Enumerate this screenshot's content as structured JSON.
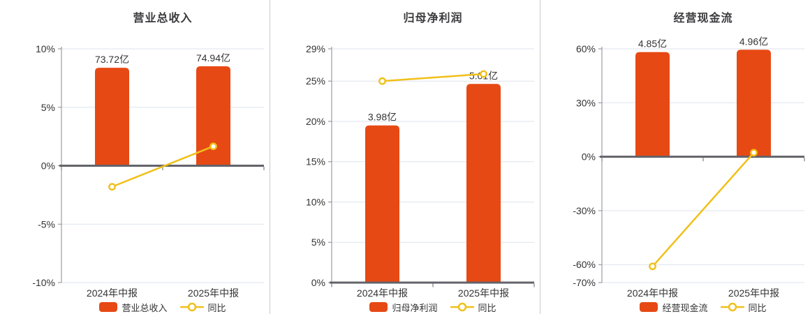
{
  "colors": {
    "bar": "#e74914",
    "line": "#f0c019",
    "marker_fill": "#ffffff",
    "grid": "#dde3ee",
    "axis_line": "#8a8a92",
    "zero_line": "#63636a",
    "text": "#333333",
    "title_text": "#3b3b3e",
    "separator": "#c9c9c9",
    "background": "#ffffff"
  },
  "chart_data": [
    {
      "type": "bar+line",
      "title": "营业总收入",
      "categories": [
        "2024年中报",
        "2025年中报"
      ],
      "bar_series": {
        "name": "营业总收入",
        "unit": "亿",
        "values": [
          73.72,
          74.94
        ],
        "value_labels": [
          "73.72亿",
          "74.94亿"
        ],
        "bar_top_axis_pct": [
          8.38,
          8.51
        ]
      },
      "line_series": {
        "name": "同比",
        "values_pct": [
          -1.8,
          1.66
        ]
      },
      "y_axis": {
        "min": -10,
        "max": 10,
        "tick_values": [
          10,
          5,
          0,
          -5,
          -10
        ],
        "tick_labels": [
          "10%",
          "5%",
          "0%",
          "-5%",
          "-10%"
        ]
      },
      "grid": true,
      "legend_position": "bottom"
    },
    {
      "type": "bar+line",
      "title": "归母净利润",
      "categories": [
        "2024年中报",
        "2025年中报"
      ],
      "bar_series": {
        "name": "归母净利润",
        "unit": "亿",
        "values": [
          3.98,
          5.01
        ],
        "value_labels": [
          "3.98亿",
          "5.01亿"
        ],
        "bar_top_axis_pct": [
          19.5,
          24.65
        ]
      },
      "line_series": {
        "name": "同比",
        "values_pct": [
          25.0,
          25.88
        ]
      },
      "y_axis": {
        "min": 0,
        "max": 29,
        "tick_values": [
          29,
          25,
          20,
          15,
          10,
          5,
          0
        ],
        "tick_labels": [
          "29%",
          "25%",
          "20%",
          "15%",
          "10%",
          "5%",
          "0%"
        ]
      },
      "grid": true,
      "legend_position": "bottom"
    },
    {
      "type": "bar+line",
      "title": "经营现金流",
      "categories": [
        "2024年中报",
        "2025年中报"
      ],
      "bar_series": {
        "name": "经营现金流",
        "unit": "亿",
        "values": [
          4.85,
          4.96
        ],
        "value_labels": [
          "4.85亿",
          "4.96亿"
        ],
        "bar_top_axis_pct": [
          58.2,
          59.5
        ]
      },
      "line_series": {
        "name": "同比",
        "values_pct": [
          -61.0,
          2.27
        ]
      },
      "y_axis": {
        "min": -70,
        "max": 60,
        "tick_values": [
          60,
          30,
          0,
          -30,
          -60,
          -70
        ],
        "tick_labels": [
          "60%",
          "30%",
          "0%",
          "-30%",
          "-60%",
          "-70%"
        ]
      },
      "grid": true,
      "legend_position": "bottom"
    }
  ]
}
